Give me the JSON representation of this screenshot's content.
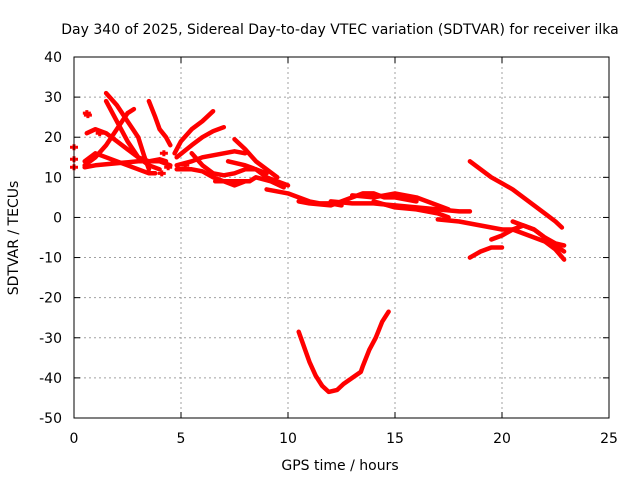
{
  "chart_data": {
    "type": "line",
    "title": "Day 340 of 2025, Sidereal Day-to-day VTEC variation (SDTVAR) for receiver ilka",
    "xlabel": "GPS time / hours",
    "ylabel": "SDTVAR / TECUs",
    "xlim": [
      0,
      25
    ],
    "ylim": [
      -50,
      40
    ],
    "xticks": [
      0,
      5,
      10,
      15,
      20,
      25
    ],
    "yticks": [
      -50,
      -40,
      -30,
      -20,
      -10,
      0,
      10,
      20,
      30,
      40
    ],
    "grid": true,
    "series_color": "#ff0000",
    "series": [
      {
        "name": "s1",
        "points": [
          [
            0.5,
            13
          ],
          [
            1,
            15
          ],
          [
            1.5,
            18
          ],
          [
            2,
            22
          ],
          [
            2.5,
            26
          ],
          [
            2.8,
            27
          ]
        ]
      },
      {
        "name": "s2",
        "points": [
          [
            0.5,
            14
          ],
          [
            1,
            16
          ],
          [
            1.5,
            15
          ],
          [
            2,
            14
          ],
          [
            2.5,
            13
          ],
          [
            3,
            12
          ],
          [
            3.5,
            11
          ],
          [
            3.8,
            11
          ]
        ]
      },
      {
        "name": "s3",
        "points": [
          [
            0.6,
            21
          ],
          [
            1,
            22
          ],
          [
            1.5,
            21
          ],
          [
            2,
            19
          ],
          [
            2.5,
            17
          ],
          [
            3,
            15
          ],
          [
            3.5,
            14
          ],
          [
            4,
            14.5
          ],
          [
            4.3,
            14
          ]
        ]
      },
      {
        "name": "s4",
        "points": [
          [
            1.5,
            31
          ],
          [
            2,
            28
          ],
          [
            2.5,
            24
          ],
          [
            3,
            20
          ],
          [
            3.3,
            15
          ],
          [
            3.5,
            12
          ]
        ]
      },
      {
        "name": "s5",
        "points": [
          [
            1.5,
            29
          ],
          [
            2,
            24
          ],
          [
            2.5,
            19
          ],
          [
            3,
            15
          ],
          [
            3.5,
            13
          ],
          [
            4,
            12
          ]
        ]
      },
      {
        "name": "s6",
        "points": [
          [
            3.5,
            29
          ],
          [
            3.8,
            25
          ],
          [
            4,
            22
          ],
          [
            4.3,
            20
          ],
          [
            4.5,
            18
          ]
        ]
      },
      {
        "name": "s7",
        "points": [
          [
            0.5,
            12.5
          ],
          [
            1,
            13
          ],
          [
            2,
            13.5
          ],
          [
            3,
            14
          ],
          [
            4,
            14
          ],
          [
            4.5,
            13
          ]
        ]
      },
      {
        "name": "s8",
        "points": [
          [
            4.7,
            16
          ],
          [
            5,
            19
          ],
          [
            5.5,
            22
          ],
          [
            6,
            24
          ],
          [
            6.5,
            26.5
          ]
        ]
      },
      {
        "name": "s9",
        "points": [
          [
            4.8,
            15
          ],
          [
            5.5,
            18
          ],
          [
            6,
            20
          ],
          [
            6.5,
            21.5
          ],
          [
            7,
            22.5
          ]
        ]
      },
      {
        "name": "s10",
        "points": [
          [
            4.8,
            13
          ],
          [
            5.5,
            14
          ],
          [
            6,
            15
          ],
          [
            6.5,
            15.5
          ],
          [
            7,
            16
          ],
          [
            7.5,
            16.5
          ],
          [
            8,
            16
          ]
        ]
      },
      {
        "name": "s11",
        "points": [
          [
            4.8,
            12
          ],
          [
            5.5,
            12
          ],
          [
            6,
            11.5
          ],
          [
            6.5,
            10
          ],
          [
            7,
            9
          ],
          [
            7.5,
            8
          ],
          [
            8,
            9
          ]
        ]
      },
      {
        "name": "s12",
        "points": [
          [
            5.5,
            16
          ],
          [
            6,
            13
          ],
          [
            6.5,
            11
          ],
          [
            7,
            10.5
          ],
          [
            7.5,
            11
          ],
          [
            8,
            12
          ],
          [
            8.5,
            12
          ],
          [
            9,
            11
          ]
        ]
      },
      {
        "name": "s13",
        "points": [
          [
            7.5,
            19.5
          ],
          [
            8,
            17
          ],
          [
            8.5,
            14
          ],
          [
            9,
            12
          ],
          [
            9.5,
            10
          ]
        ]
      },
      {
        "name": "s14",
        "points": [
          [
            7.2,
            14
          ],
          [
            8,
            13
          ],
          [
            8.5,
            12
          ],
          [
            9,
            10
          ],
          [
            9.5,
            9
          ],
          [
            10,
            8
          ]
        ]
      },
      {
        "name": "s15",
        "points": [
          [
            6.6,
            9
          ],
          [
            7.5,
            9
          ],
          [
            8.2,
            9
          ],
          [
            8.5,
            10
          ],
          [
            9.2,
            9
          ],
          [
            9.8,
            7.5
          ]
        ]
      },
      {
        "name": "s16",
        "points": [
          [
            9,
            7
          ],
          [
            10,
            6
          ],
          [
            10.5,
            5
          ],
          [
            11,
            4
          ],
          [
            11.5,
            3.5
          ],
          [
            12,
            3.5
          ],
          [
            12.5,
            3
          ]
        ]
      },
      {
        "name": "s17",
        "points": [
          [
            10.5,
            4
          ],
          [
            11,
            3.5
          ],
          [
            12,
            3
          ],
          [
            12.5,
            4
          ],
          [
            13,
            5
          ],
          [
            13.5,
            6
          ],
          [
            14,
            6
          ],
          [
            14.5,
            5
          ],
          [
            15,
            5
          ],
          [
            15.5,
            4.5
          ],
          [
            16,
            4
          ]
        ]
      },
      {
        "name": "s18",
        "points": [
          [
            12,
            4
          ],
          [
            13,
            3.5
          ],
          [
            14,
            3.5
          ],
          [
            15,
            3
          ],
          [
            16,
            2.5
          ],
          [
            17,
            2
          ],
          [
            18,
            1.5
          ],
          [
            18.5,
            1.5
          ]
        ]
      },
      {
        "name": "s19",
        "points": [
          [
            13,
            5.5
          ],
          [
            14,
            5
          ],
          [
            15,
            6
          ],
          [
            16,
            5
          ],
          [
            16.5,
            4
          ],
          [
            17,
            3
          ],
          [
            17.5,
            2
          ]
        ]
      },
      {
        "name": "s20",
        "points": [
          [
            14,
            4
          ],
          [
            15,
            2.5
          ],
          [
            16,
            2
          ],
          [
            17,
            1
          ],
          [
            17.5,
            0
          ]
        ]
      },
      {
        "name": "s21",
        "points": [
          [
            10.5,
            -28.5
          ],
          [
            10.8,
            -33
          ],
          [
            11,
            -36
          ],
          [
            11.3,
            -39.5
          ],
          [
            11.6,
            -42
          ],
          [
            11.9,
            -43.5
          ],
          [
            12.3,
            -43
          ],
          [
            12.6,
            -41.5
          ],
          [
            13,
            -40
          ],
          [
            13.4,
            -38.5
          ],
          [
            13.5,
            -37
          ],
          [
            13.8,
            -33
          ],
          [
            14.1,
            -30
          ],
          [
            14.4,
            -26
          ],
          [
            14.7,
            -23.5
          ]
        ]
      },
      {
        "name": "s22",
        "points": [
          [
            18.5,
            14
          ],
          [
            19,
            12
          ],
          [
            19.5,
            10
          ],
          [
            20,
            8.5
          ],
          [
            20.5,
            7
          ],
          [
            21,
            5
          ],
          [
            21.5,
            3
          ],
          [
            22,
            1
          ],
          [
            22.5,
            -1
          ],
          [
            22.8,
            -2.5
          ]
        ]
      },
      {
        "name": "s23",
        "points": [
          [
            17,
            -0.5
          ],
          [
            18,
            -1
          ],
          [
            19,
            -2
          ],
          [
            20,
            -3
          ],
          [
            20.5,
            -3
          ],
          [
            21,
            -4
          ],
          [
            21.5,
            -5
          ],
          [
            22,
            -6
          ],
          [
            22.5,
            -8
          ],
          [
            22.9,
            -10.5
          ]
        ]
      },
      {
        "name": "s24",
        "points": [
          [
            20.5,
            -1
          ],
          [
            21,
            -2
          ],
          [
            21.5,
            -3
          ],
          [
            22,
            -5
          ],
          [
            22.5,
            -7
          ],
          [
            22.9,
            -8.5
          ]
        ]
      },
      {
        "name": "s25",
        "points": [
          [
            18.5,
            -10
          ],
          [
            19,
            -8.5
          ],
          [
            19.5,
            -7.5
          ],
          [
            20,
            -7.5
          ]
        ]
      },
      {
        "name": "s26",
        "points": [
          [
            19.5,
            -5.5
          ],
          [
            20,
            -4.5
          ],
          [
            20.5,
            -3
          ],
          [
            21,
            -2
          ],
          [
            21.5,
            -3
          ],
          [
            22,
            -5
          ],
          [
            22.5,
            -6.5
          ],
          [
            22.9,
            -7
          ]
        ]
      }
    ],
    "markers": [
      [
        0,
        17.5
      ],
      [
        0,
        14.5
      ],
      [
        0,
        12.5
      ],
      [
        0.6,
        26
      ],
      [
        0.65,
        25.5
      ],
      [
        1.2,
        21
      ],
      [
        4.1,
        11
      ],
      [
        4.4,
        12.5
      ],
      [
        4.2,
        16
      ],
      [
        5.2,
        13
      ]
    ]
  }
}
